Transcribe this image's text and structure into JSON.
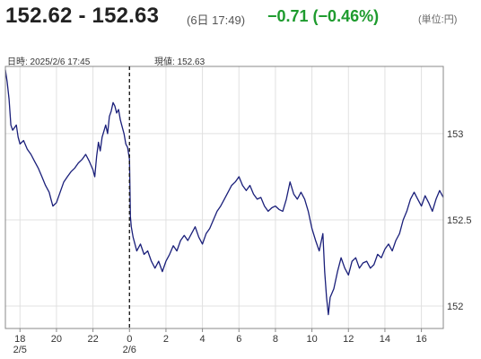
{
  "header": {
    "price_range": "152.62 - 152.63",
    "timestamp": "(6日 17:49)",
    "change": "−0.71 (−0.46%)",
    "unit": "(単位:円)"
  },
  "info": {
    "datetime": "日時: 2025/2/6  17:45",
    "current": "現値: 152.63"
  },
  "colors": {
    "line": "#1a1f7a",
    "change_positive_down": "#1e9b2e",
    "grid": "#e0e0e0",
    "frame": "#888888"
  },
  "chart_data": {
    "type": "line",
    "title": "",
    "xlabel": "",
    "ylabel": "",
    "y_ticks": [
      "153",
      "152.5",
      "152"
    ],
    "y_tick_values": [
      153,
      152.5,
      152
    ],
    "ylim": [
      151.87,
      153.39
    ],
    "x_ticks": [
      "18",
      "20",
      "22",
      "0",
      "2",
      "4",
      "6",
      "8",
      "10",
      "12",
      "14",
      "16"
    ],
    "x_tick_values": [
      18,
      20,
      22,
      24,
      26,
      28,
      30,
      32,
      34,
      36,
      38,
      40
    ],
    "x_date_labels": [
      {
        "label": "2/5",
        "x": 18
      },
      {
        "label": "2/6",
        "x": 24
      }
    ],
    "xlim": [
      17.2,
      41.2
    ],
    "day_separator_x": 24,
    "grid": true,
    "series": [
      {
        "values": [
          [
            17.2,
            153.37
          ],
          [
            17.3,
            153.3
          ],
          [
            17.4,
            153.2
          ],
          [
            17.5,
            153.05
          ],
          [
            17.6,
            153.02
          ],
          [
            17.8,
            153.05
          ],
          [
            17.9,
            152.98
          ],
          [
            18.0,
            152.94
          ],
          [
            18.2,
            152.96
          ],
          [
            18.4,
            152.91
          ],
          [
            18.6,
            152.88
          ],
          [
            18.8,
            152.84
          ],
          [
            19.0,
            152.8
          ],
          [
            19.2,
            152.75
          ],
          [
            19.4,
            152.7
          ],
          [
            19.6,
            152.66
          ],
          [
            19.7,
            152.62
          ],
          [
            19.8,
            152.58
          ],
          [
            20.0,
            152.6
          ],
          [
            20.2,
            152.66
          ],
          [
            20.4,
            152.72
          ],
          [
            20.6,
            152.75
          ],
          [
            20.8,
            152.78
          ],
          [
            21.0,
            152.8
          ],
          [
            21.2,
            152.83
          ],
          [
            21.4,
            152.85
          ],
          [
            21.6,
            152.88
          ],
          [
            21.8,
            152.84
          ],
          [
            22.0,
            152.79
          ],
          [
            22.1,
            152.75
          ],
          [
            22.2,
            152.87
          ],
          [
            22.3,
            152.95
          ],
          [
            22.4,
            152.9
          ],
          [
            22.5,
            152.98
          ],
          [
            22.7,
            153.05
          ],
          [
            22.8,
            153.0
          ],
          [
            22.9,
            153.1
          ],
          [
            23.0,
            153.13
          ],
          [
            23.1,
            153.18
          ],
          [
            23.2,
            153.16
          ],
          [
            23.3,
            153.12
          ],
          [
            23.4,
            153.14
          ],
          [
            23.5,
            153.08
          ],
          [
            23.6,
            153.04
          ],
          [
            23.7,
            153.0
          ],
          [
            23.8,
            152.94
          ],
          [
            23.9,
            152.92
          ],
          [
            24.0,
            152.85
          ],
          [
            24.05,
            152.52
          ],
          [
            24.1,
            152.46
          ],
          [
            24.2,
            152.4
          ],
          [
            24.4,
            152.32
          ],
          [
            24.6,
            152.36
          ],
          [
            24.8,
            152.3
          ],
          [
            25.0,
            152.32
          ],
          [
            25.2,
            152.26
          ],
          [
            25.4,
            152.22
          ],
          [
            25.6,
            152.26
          ],
          [
            25.8,
            152.2
          ],
          [
            26.0,
            152.26
          ],
          [
            26.2,
            152.3
          ],
          [
            26.4,
            152.35
          ],
          [
            26.6,
            152.32
          ],
          [
            26.8,
            152.38
          ],
          [
            27.0,
            152.41
          ],
          [
            27.2,
            152.38
          ],
          [
            27.4,
            152.42
          ],
          [
            27.6,
            152.46
          ],
          [
            27.8,
            152.4
          ],
          [
            28.0,
            152.36
          ],
          [
            28.2,
            152.42
          ],
          [
            28.4,
            152.45
          ],
          [
            28.6,
            152.5
          ],
          [
            28.8,
            152.55
          ],
          [
            29.0,
            152.58
          ],
          [
            29.2,
            152.62
          ],
          [
            29.4,
            152.66
          ],
          [
            29.6,
            152.7
          ],
          [
            29.8,
            152.72
          ],
          [
            30.0,
            152.75
          ],
          [
            30.2,
            152.7
          ],
          [
            30.4,
            152.67
          ],
          [
            30.6,
            152.7
          ],
          [
            30.8,
            152.65
          ],
          [
            31.0,
            152.62
          ],
          [
            31.2,
            152.63
          ],
          [
            31.4,
            152.58
          ],
          [
            31.6,
            152.55
          ],
          [
            31.8,
            152.57
          ],
          [
            32.0,
            152.58
          ],
          [
            32.2,
            152.56
          ],
          [
            32.4,
            152.55
          ],
          [
            32.6,
            152.62
          ],
          [
            32.8,
            152.72
          ],
          [
            33.0,
            152.65
          ],
          [
            33.2,
            152.62
          ],
          [
            33.4,
            152.66
          ],
          [
            33.6,
            152.62
          ],
          [
            33.8,
            152.55
          ],
          [
            34.0,
            152.45
          ],
          [
            34.2,
            152.38
          ],
          [
            34.4,
            152.32
          ],
          [
            34.6,
            152.42
          ],
          [
            34.7,
            152.2
          ],
          [
            34.8,
            152.05
          ],
          [
            34.9,
            151.95
          ],
          [
            35.0,
            152.05
          ],
          [
            35.2,
            152.1
          ],
          [
            35.4,
            152.2
          ],
          [
            35.6,
            152.28
          ],
          [
            35.8,
            152.22
          ],
          [
            36.0,
            152.18
          ],
          [
            36.2,
            152.26
          ],
          [
            36.4,
            152.28
          ],
          [
            36.6,
            152.22
          ],
          [
            36.8,
            152.25
          ],
          [
            37.0,
            152.26
          ],
          [
            37.2,
            152.22
          ],
          [
            37.4,
            152.24
          ],
          [
            37.6,
            152.3
          ],
          [
            37.8,
            152.28
          ],
          [
            38.0,
            152.33
          ],
          [
            38.2,
            152.36
          ],
          [
            38.4,
            152.32
          ],
          [
            38.6,
            152.38
          ],
          [
            38.8,
            152.42
          ],
          [
            39.0,
            152.5
          ],
          [
            39.2,
            152.55
          ],
          [
            39.4,
            152.62
          ],
          [
            39.6,
            152.66
          ],
          [
            39.8,
            152.62
          ],
          [
            40.0,
            152.58
          ],
          [
            40.2,
            152.64
          ],
          [
            40.4,
            152.6
          ],
          [
            40.6,
            152.55
          ],
          [
            40.8,
            152.62
          ],
          [
            41.0,
            152.67
          ],
          [
            41.2,
            152.63
          ]
        ]
      }
    ]
  }
}
